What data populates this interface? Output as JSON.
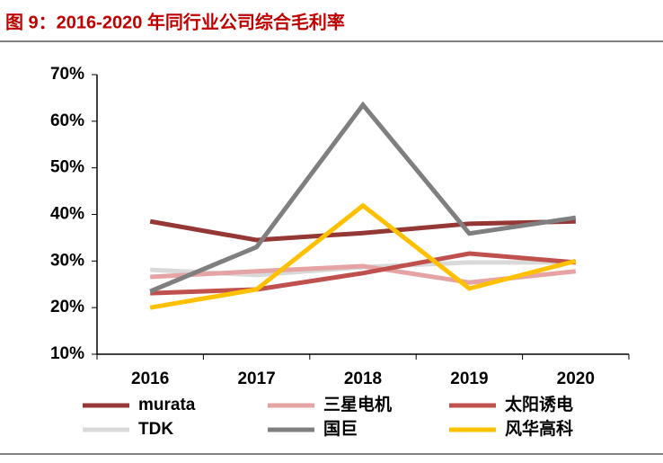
{
  "chart_data": {
    "type": "line",
    "title": "图 9：2016-2020 年同行业公司综合毛利率",
    "categories": [
      "2016",
      "2017",
      "2018",
      "2019",
      "2020"
    ],
    "series": [
      {
        "name": "murata",
        "color": "#953735",
        "values": [
          38.5,
          34.5,
          36,
          38,
          38.5
        ]
      },
      {
        "name": "三星电机",
        "color": "#e6a3a3",
        "values": [
          26.6,
          27.8,
          28.9,
          25.4,
          27.8
        ]
      },
      {
        "name": "太阳诱电",
        "color": "#c0504d",
        "values": [
          23.1,
          23.9,
          27.4,
          31.6,
          29.7
        ]
      },
      {
        "name": "TDK",
        "color": "#d9d9d9",
        "values": [
          28.1,
          27,
          28.7,
          29.7,
          29.7
        ]
      },
      {
        "name": "国巨",
        "color": "#7f7f7f",
        "values": [
          23.5,
          33,
          63.5,
          35.9,
          39.3
        ]
      },
      {
        "name": "风华高科",
        "color": "#ffc000",
        "values": [
          20,
          23.9,
          41.9,
          24.1,
          30
        ]
      }
    ],
    "ylim": [
      10,
      70
    ],
    "yticks": [
      {
        "value": 10,
        "label": "10%"
      },
      {
        "value": 20,
        "label": "20%"
      },
      {
        "value": 30,
        "label": "30%"
      },
      {
        "value": 40,
        "label": "40%"
      },
      {
        "value": 50,
        "label": "50%"
      },
      {
        "value": 60,
        "label": "60%"
      },
      {
        "value": 70,
        "label": "70%"
      }
    ],
    "grid": false,
    "legend": "bottom"
  }
}
